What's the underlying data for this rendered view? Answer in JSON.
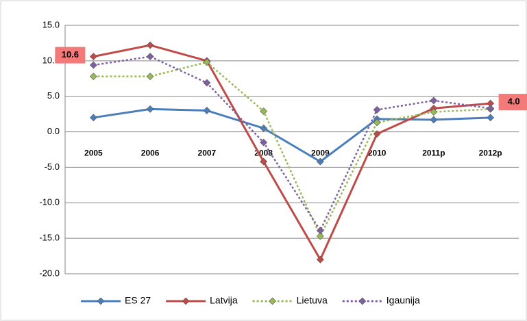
{
  "chart_data": {
    "type": "line",
    "categories": [
      "2005",
      "2006",
      "2007",
      "2008",
      "2009",
      "2010",
      "2011p",
      "2012p"
    ],
    "series": [
      {
        "name": "ES 27",
        "color": "#4a7ebb",
        "dash": false,
        "values": [
          2.0,
          3.2,
          3.0,
          0.5,
          -4.2,
          1.8,
          1.7,
          2.0
        ]
      },
      {
        "name": "Latvija",
        "color": "#be4b48",
        "dash": false,
        "values": [
          10.6,
          12.2,
          10.0,
          -4.2,
          -18.0,
          -0.3,
          3.3,
          4.0
        ],
        "value_labels": [
          "10.6",
          null,
          null,
          null,
          null,
          null,
          null,
          "4.0"
        ]
      },
      {
        "name": "Lietuva",
        "color": "#98b954",
        "dash": true,
        "values": [
          7.8,
          7.8,
          9.8,
          2.9,
          -14.7,
          1.3,
          2.8,
          3.2
        ]
      },
      {
        "name": "Igaunija",
        "color": "#7d60a0",
        "dash": true,
        "values": [
          9.4,
          10.6,
          6.9,
          -1.5,
          -13.9,
          3.1,
          4.4,
          3.3
        ]
      }
    ],
    "ylim": [
      -20,
      15
    ],
    "yticks": [
      {
        "value": -20,
        "label": "-20.0"
      },
      {
        "value": -15,
        "label": "-15.0"
      },
      {
        "value": -10,
        "label": "-10.0"
      },
      {
        "value": -5,
        "label": "-5.0"
      },
      {
        "value": 0,
        "label": "0.0"
      },
      {
        "value": 5,
        "label": "5.0"
      },
      {
        "value": 10,
        "label": "10.0"
      },
      {
        "value": 15,
        "label": "15.0"
      }
    ],
    "grid": true,
    "legend": "bottom"
  }
}
